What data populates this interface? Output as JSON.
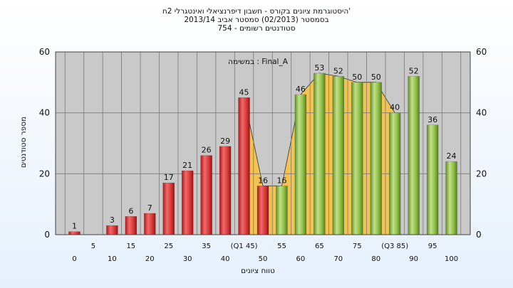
{
  "chart_data": {
    "type": "bar",
    "title": "'היסטוגרמת ציונים בקורס - חשבון דיפרנציאלי ואינטגרלי 2ח",
    "subtitle": "בסמסטר  (02/2013)  סמסטר אביב 2013/14",
    "subtitle2": "סטודנטים רשומים - 754",
    "annotation": "במשימה : Final_A",
    "xlabel": "טווח ציונים",
    "ylabel": "מספר סטודנטים",
    "ylim": [
      0,
      60
    ],
    "yticks": [
      0,
      20,
      40,
      60
    ],
    "grid": true,
    "categories": [
      "0",
      "5",
      "10",
      "15",
      "20",
      "25",
      "30",
      "35",
      "40",
      "(Q1 45)",
      "50",
      "55",
      "60",
      "65",
      "70",
      "75",
      "80",
      "(Q3 85)",
      "90",
      "95",
      "100"
    ],
    "values": [
      1,
      0,
      3,
      6,
      7,
      17,
      21,
      26,
      29,
      45,
      16,
      16,
      46,
      53,
      52,
      50,
      50,
      40,
      52,
      36,
      24
    ],
    "value_labels": [
      "1",
      "",
      "3",
      "6",
      "7",
      "17",
      "21",
      "26",
      "29",
      "45",
      "16",
      "16",
      "46",
      "53",
      "52",
      "50",
      "50",
      "40",
      "52",
      "36",
      "24"
    ],
    "bar_colors": [
      "red",
      "red",
      "red",
      "red",
      "red",
      "red",
      "red",
      "red",
      "red",
      "red",
      "red",
      "green",
      "green",
      "green",
      "green",
      "green",
      "green",
      "green",
      "green",
      "green",
      "green"
    ],
    "band": {
      "from_index": 9,
      "to_index": 17
    },
    "colors": {
      "red": "#d93a3a",
      "green": "#8fbf47",
      "band": "#f7c244",
      "plot_bg": "#c9c9c9",
      "grid": "#7a7a7a"
    }
  }
}
